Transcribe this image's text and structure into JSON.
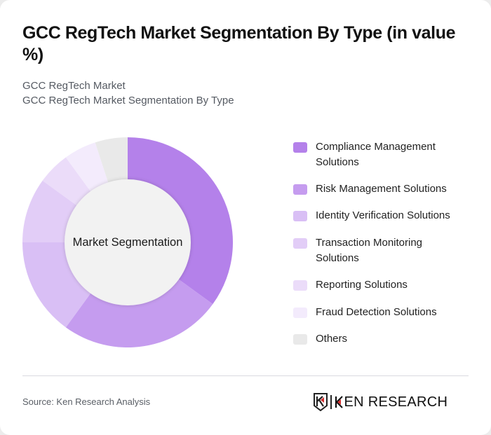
{
  "header": {
    "title": "GCC RegTech Market Segmentation By Type (in value %)",
    "subtitle_1": "GCC RegTech Market",
    "subtitle_2": "GCC RegTech Market Segmentation By Type"
  },
  "donut": {
    "center_label": "Market Segmentation"
  },
  "legend": [
    {
      "label": "Compliance Management Solutions",
      "color": "#b481ea"
    },
    {
      "label": "Risk Management Solutions",
      "color": "#c59cef"
    },
    {
      "label": "Identity Verification Solutions",
      "color": "#d9bff5"
    },
    {
      "label": "Transaction Monitoring Solutions",
      "color": "#e2cdf7"
    },
    {
      "label": "Reporting Solutions",
      "color": "#ebdcf9"
    },
    {
      "label": "Fraud Detection Solutions",
      "color": "#f3ebfc"
    },
    {
      "label": "Others",
      "color": "#e9e9e9"
    }
  ],
  "footer": {
    "source": "Source: Ken Research Analysis",
    "logo_text": "KEN RESEARCH"
  },
  "chart_data": {
    "type": "pie",
    "variant": "donut",
    "title": "GCC RegTech Market Segmentation By Type (in value %)",
    "subtitle": [
      "GCC RegTech Market",
      "GCC RegTech Market Segmentation By Type"
    ],
    "center_label": "Market Segmentation",
    "categories": [
      "Compliance Management Solutions",
      "Risk Management Solutions",
      "Identity Verification Solutions",
      "Transaction Monitoring Solutions",
      "Reporting Solutions",
      "Fraud Detection Solutions",
      "Others"
    ],
    "values": [
      35,
      25,
      15,
      10,
      5,
      5,
      5
    ],
    "colors": [
      "#b481ea",
      "#c59cef",
      "#d9bff5",
      "#e2cdf7",
      "#ebdcf9",
      "#f3ebfc",
      "#e9e9e9"
    ],
    "unit": "%",
    "start_angle_deg": 0,
    "direction": "clockwise",
    "legend_position": "right",
    "source": "Source: Ken Research Analysis"
  }
}
